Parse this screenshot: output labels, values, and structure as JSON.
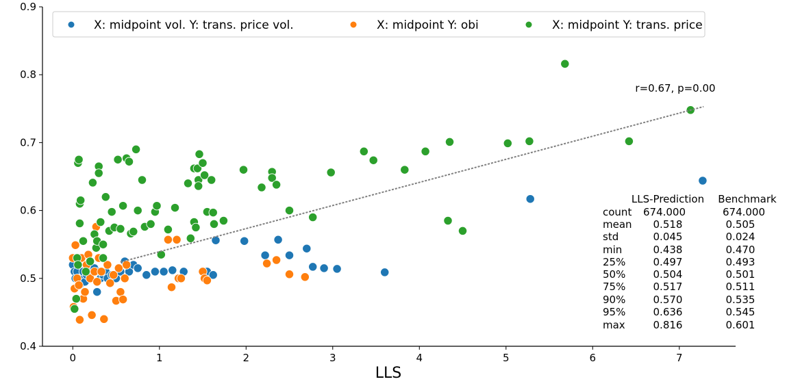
{
  "chart_data": {
    "type": "scatter",
    "title": "",
    "xlabel": "LLS",
    "ylabel": "",
    "xlim": [
      -0.35,
      7.65
    ],
    "ylim": [
      0.4,
      0.9
    ],
    "xticks": [
      0,
      1,
      2,
      3,
      4,
      5,
      6,
      7
    ],
    "yticks": [
      0.4,
      0.5,
      0.6,
      0.7,
      0.8,
      0.9
    ],
    "xtick_labels": [
      "0",
      "1",
      "2",
      "3",
      "4",
      "5",
      "6",
      "7"
    ],
    "ytick_labels": [
      "0.4",
      "0.5",
      "0.6",
      "0.7",
      "0.8",
      "0.9"
    ],
    "grid": false,
    "legend_position": "top",
    "series": [
      {
        "name": "X: midpoint vol. Y: trans. price vol.",
        "color": "#1f77b4",
        "points": [
          [
            0.0,
            0.52
          ],
          [
            0.02,
            0.51
          ],
          [
            0.03,
            0.5
          ],
          [
            0.04,
            0.47
          ],
          [
            0.05,
            0.51
          ],
          [
            0.06,
            0.5
          ],
          [
            0.08,
            0.49
          ],
          [
            0.1,
            0.5
          ],
          [
            0.12,
            0.51
          ],
          [
            0.14,
            0.495
          ],
          [
            0.16,
            0.505
          ],
          [
            0.18,
            0.52
          ],
          [
            0.2,
            0.5
          ],
          [
            0.22,
            0.51
          ],
          [
            0.25,
            0.515
          ],
          [
            0.28,
            0.48
          ],
          [
            0.3,
            0.51
          ],
          [
            0.32,
            0.5
          ],
          [
            0.35,
            0.505
          ],
          [
            0.38,
            0.51
          ],
          [
            0.4,
            0.5
          ],
          [
            0.45,
            0.505
          ],
          [
            0.5,
            0.5
          ],
          [
            0.55,
            0.51
          ],
          [
            0.6,
            0.525
          ],
          [
            0.65,
            0.51
          ],
          [
            0.7,
            0.52
          ],
          [
            0.75,
            0.515
          ],
          [
            0.85,
            0.505
          ],
          [
            0.95,
            0.51
          ],
          [
            1.05,
            0.51
          ],
          [
            1.15,
            0.512
          ],
          [
            1.28,
            0.51
          ],
          [
            1.55,
            0.51
          ],
          [
            1.62,
            0.505
          ],
          [
            1.65,
            0.556
          ],
          [
            1.98,
            0.555
          ],
          [
            2.22,
            0.534
          ],
          [
            2.37,
            0.557
          ],
          [
            2.5,
            0.534
          ],
          [
            2.7,
            0.544
          ],
          [
            2.77,
            0.517
          ],
          [
            2.9,
            0.515
          ],
          [
            3.05,
            0.514
          ],
          [
            3.6,
            0.509
          ],
          [
            5.28,
            0.617
          ],
          [
            7.27,
            0.644
          ]
        ]
      },
      {
        "name": "X: midpoint Y: obi",
        "color": "#ff7f0e",
        "points": [
          [
            0.0,
            0.53
          ],
          [
            0.01,
            0.458
          ],
          [
            0.02,
            0.485
          ],
          [
            0.03,
            0.549
          ],
          [
            0.05,
            0.5
          ],
          [
            0.07,
            0.49
          ],
          [
            0.08,
            0.439
          ],
          [
            0.1,
            0.53
          ],
          [
            0.12,
            0.47
          ],
          [
            0.14,
            0.48
          ],
          [
            0.16,
            0.52
          ],
          [
            0.18,
            0.535
          ],
          [
            0.2,
            0.5
          ],
          [
            0.22,
            0.446
          ],
          [
            0.25,
            0.51
          ],
          [
            0.27,
            0.576
          ],
          [
            0.28,
            0.495
          ],
          [
            0.3,
            0.53
          ],
          [
            0.33,
            0.51
          ],
          [
            0.36,
            0.44
          ],
          [
            0.4,
            0.52
          ],
          [
            0.43,
            0.493
          ],
          [
            0.47,
            0.505
          ],
          [
            0.5,
            0.467
          ],
          [
            0.53,
            0.515
          ],
          [
            0.55,
            0.48
          ],
          [
            0.58,
            0.469
          ],
          [
            0.6,
            0.5
          ],
          [
            0.62,
            0.52
          ],
          [
            1.1,
            0.557
          ],
          [
            1.14,
            0.487
          ],
          [
            1.2,
            0.557
          ],
          [
            1.22,
            0.5
          ],
          [
            1.25,
            0.5
          ],
          [
            1.5,
            0.51
          ],
          [
            1.52,
            0.5
          ],
          [
            1.55,
            0.497
          ],
          [
            2.24,
            0.522
          ],
          [
            2.35,
            0.527
          ],
          [
            2.5,
            0.506
          ],
          [
            2.68,
            0.502
          ]
        ]
      },
      {
        "name": "X: midpoint Y: trans. price",
        "color": "#2ca02c",
        "points": [
          [
            0.02,
            0.455
          ],
          [
            0.04,
            0.47
          ],
          [
            0.05,
            0.53
          ],
          [
            0.06,
            0.52
          ],
          [
            0.06,
            0.67
          ],
          [
            0.07,
            0.675
          ],
          [
            0.08,
            0.581
          ],
          [
            0.08,
            0.61
          ],
          [
            0.09,
            0.615
          ],
          [
            0.12,
            0.555
          ],
          [
            0.15,
            0.51
          ],
          [
            0.2,
            0.525
          ],
          [
            0.23,
            0.641
          ],
          [
            0.25,
            0.565
          ],
          [
            0.27,
            0.545
          ],
          [
            0.28,
            0.555
          ],
          [
            0.3,
            0.665
          ],
          [
            0.3,
            0.655
          ],
          [
            0.32,
            0.583
          ],
          [
            0.35,
            0.55
          ],
          [
            0.35,
            0.53
          ],
          [
            0.38,
            0.62
          ],
          [
            0.42,
            0.57
          ],
          [
            0.45,
            0.598
          ],
          [
            0.48,
            0.575
          ],
          [
            0.52,
            0.675
          ],
          [
            0.55,
            0.573
          ],
          [
            0.58,
            0.607
          ],
          [
            0.62,
            0.677
          ],
          [
            0.65,
            0.672
          ],
          [
            0.67,
            0.566
          ],
          [
            0.7,
            0.569
          ],
          [
            0.73,
            0.69
          ],
          [
            0.75,
            0.6
          ],
          [
            0.8,
            0.645
          ],
          [
            0.83,
            0.576
          ],
          [
            0.9,
            0.58
          ],
          [
            0.95,
            0.598
          ],
          [
            0.97,
            0.607
          ],
          [
            1.02,
            0.535
          ],
          [
            1.1,
            0.572
          ],
          [
            1.18,
            0.604
          ],
          [
            1.33,
            0.64
          ],
          [
            1.36,
            0.559
          ],
          [
            1.4,
            0.662
          ],
          [
            1.4,
            0.583
          ],
          [
            1.42,
            0.575
          ],
          [
            1.44,
            0.662
          ],
          [
            1.45,
            0.645
          ],
          [
            1.45,
            0.636
          ],
          [
            1.46,
            0.683
          ],
          [
            1.5,
            0.67
          ],
          [
            1.52,
            0.652
          ],
          [
            1.55,
            0.598
          ],
          [
            1.6,
            0.645
          ],
          [
            1.62,
            0.597
          ],
          [
            1.63,
            0.58
          ],
          [
            1.74,
            0.585
          ],
          [
            1.97,
            0.66
          ],
          [
            2.18,
            0.634
          ],
          [
            2.3,
            0.657
          ],
          [
            2.3,
            0.648
          ],
          [
            2.35,
            0.638
          ],
          [
            2.5,
            0.6
          ],
          [
            2.77,
            0.59
          ],
          [
            2.98,
            0.656
          ],
          [
            3.36,
            0.687
          ],
          [
            3.47,
            0.674
          ],
          [
            3.83,
            0.66
          ],
          [
            4.07,
            0.687
          ],
          [
            4.33,
            0.585
          ],
          [
            4.35,
            0.701
          ],
          [
            4.5,
            0.57
          ],
          [
            5.02,
            0.699
          ],
          [
            5.27,
            0.702
          ],
          [
            5.68,
            0.816
          ],
          [
            6.42,
            0.702
          ],
          [
            7.13,
            0.748
          ]
        ]
      }
    ],
    "trendline": {
      "x": [
        0.55,
        7.28
      ],
      "y": [
        0.524,
        0.753
      ],
      "label": "r=0.67, p=0.00"
    },
    "stats_table": {
      "headers": [
        "LLS-Prediction",
        "Benchmark"
      ],
      "rows": [
        {
          "label": "count",
          "a": "674.000",
          "b": "674.000"
        },
        {
          "label": "mean",
          "a": "0.518",
          "b": "0.505"
        },
        {
          "label": "std",
          "a": "0.045",
          "b": "0.024"
        },
        {
          "label": "min",
          "a": "0.438",
          "b": "0.470"
        },
        {
          "label": "25%",
          "a": "0.497",
          "b": "0.493"
        },
        {
          "label": "50%",
          "a": "0.504",
          "b": "0.501"
        },
        {
          "label": "75%",
          "a": "0.517",
          "b": "0.511"
        },
        {
          "label": "90%",
          "a": "0.570",
          "b": "0.535"
        },
        {
          "label": "95%",
          "a": "0.636",
          "b": "0.545"
        },
        {
          "label": "max",
          "a": "0.816",
          "b": "0.601"
        }
      ]
    }
  }
}
